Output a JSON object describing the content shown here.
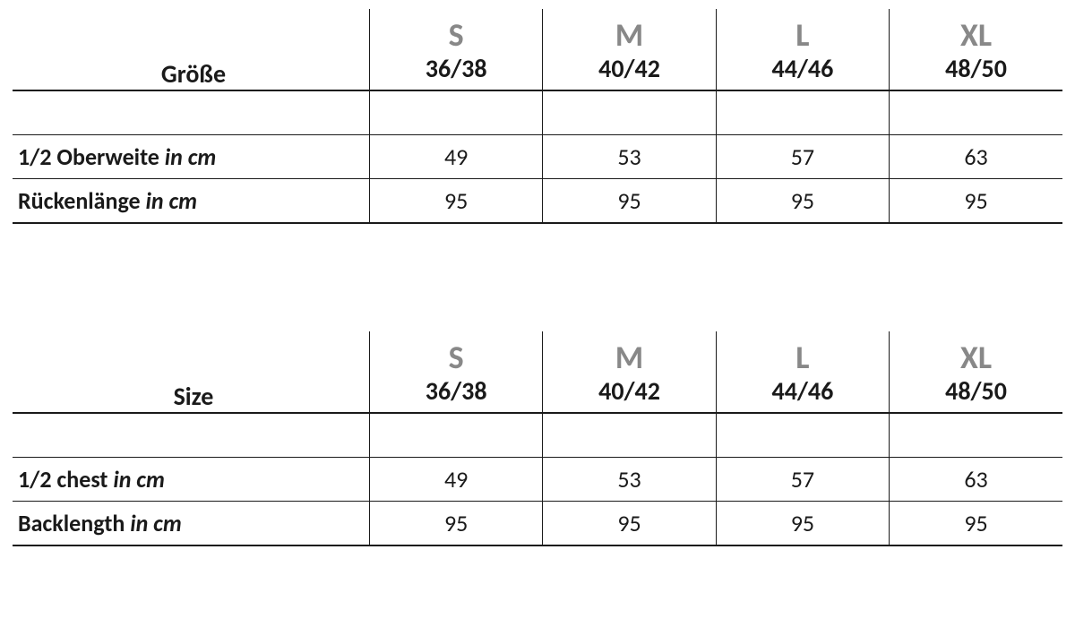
{
  "colors": {
    "text": "#1a1a1a",
    "size_letter": "#888888",
    "border": "#1a1a1a",
    "background": "#ffffff"
  },
  "tables": [
    {
      "header_label": "Größe",
      "sizes": [
        {
          "letter": "S",
          "range": "36/38"
        },
        {
          "letter": "M",
          "range": "40/42"
        },
        {
          "letter": "L",
          "range": "44/46"
        },
        {
          "letter": "XL",
          "range": "48/50"
        }
      ],
      "rows": [
        {
          "label": "1/2 Oberweite",
          "unit": "in cm",
          "values": [
            "49",
            "53",
            "57",
            "63"
          ]
        },
        {
          "label": "Rückenlänge",
          "unit": "in cm",
          "values": [
            "95",
            "95",
            "95",
            "95"
          ]
        }
      ]
    },
    {
      "header_label": "Size",
      "sizes": [
        {
          "letter": "S",
          "range": "36/38"
        },
        {
          "letter": "M",
          "range": "40/42"
        },
        {
          "letter": "L",
          "range": "44/46"
        },
        {
          "letter": "XL",
          "range": "48/50"
        }
      ],
      "rows": [
        {
          "label": "1/2 chest",
          "unit": "in cm",
          "values": [
            "49",
            "53",
            "57",
            "63"
          ]
        },
        {
          "label": "Backlength",
          "unit": "in cm",
          "values": [
            "95",
            "95",
            "95",
            "95"
          ]
        }
      ]
    }
  ]
}
